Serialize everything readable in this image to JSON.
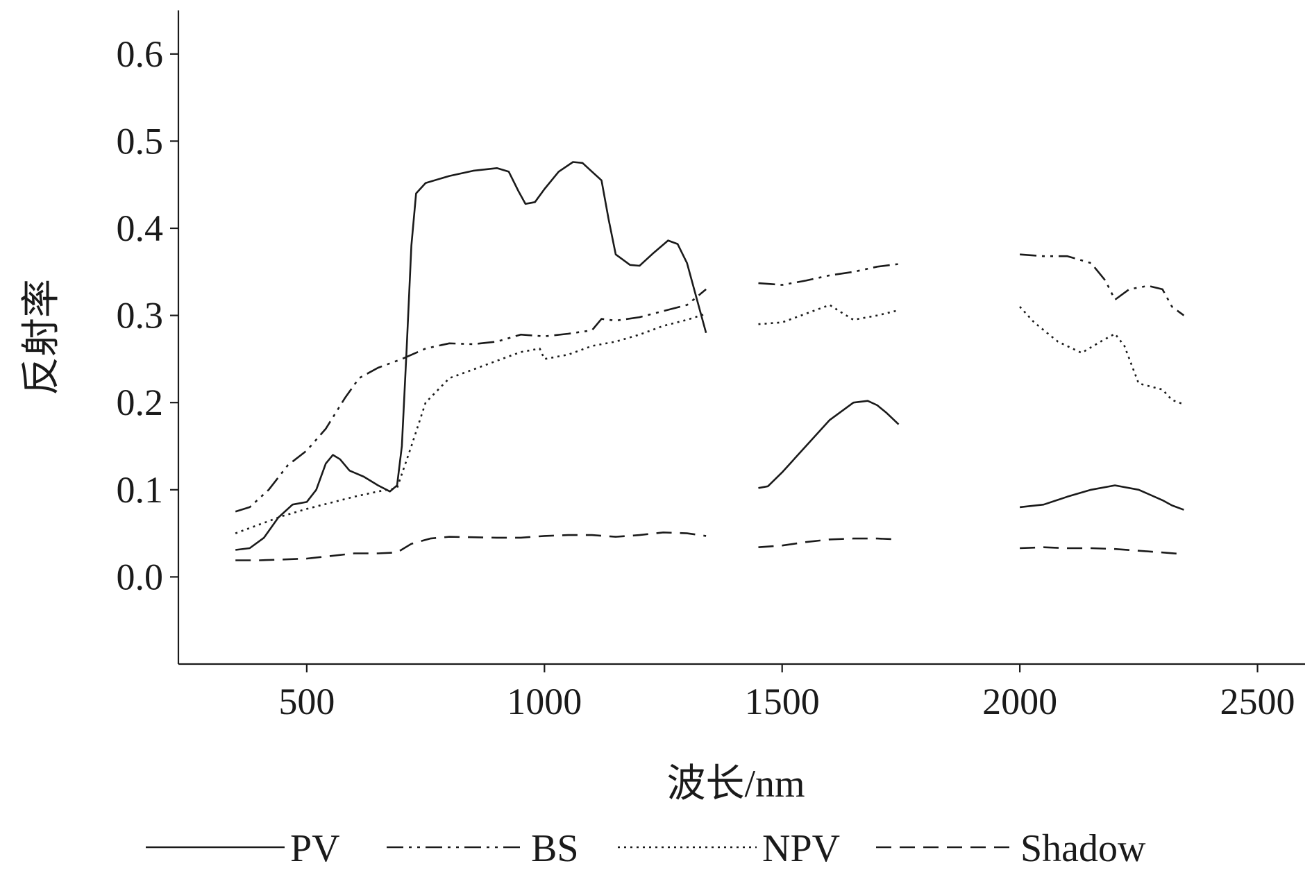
{
  "chart_data": {
    "type": "line",
    "title": "",
    "xlabel": "波长/nm",
    "ylabel": "反射率",
    "xlim": [
      230,
      2600
    ],
    "ylim": [
      -0.1,
      0.65
    ],
    "xticks": [
      500,
      1000,
      1500,
      2000,
      2500
    ],
    "xtick_labels": [
      "500",
      "1000",
      "1500",
      "2000",
      "2500"
    ],
    "yticks": [
      0.0,
      0.1,
      0.2,
      0.3,
      0.4,
      0.5,
      0.6
    ],
    "ytick_labels": [
      "0.0",
      "0.1",
      "0.2",
      "0.3",
      "0.4",
      "0.5",
      "0.6"
    ],
    "grid": false,
    "legend_position": "bottom",
    "series": [
      {
        "name": "PV",
        "style": "solid",
        "segments": [
          [
            [
              350,
              0.031
            ],
            [
              380,
              0.033
            ],
            [
              410,
              0.045
            ],
            [
              440,
              0.068
            ],
            [
              470,
              0.083
            ],
            [
              500,
              0.086
            ],
            [
              520,
              0.1
            ],
            [
              540,
              0.13
            ],
            [
              555,
              0.14
            ],
            [
              570,
              0.135
            ],
            [
              590,
              0.122
            ],
            [
              620,
              0.115
            ],
            [
              650,
              0.105
            ],
            [
              675,
              0.098
            ],
            [
              690,
              0.105
            ],
            [
              700,
              0.15
            ],
            [
              710,
              0.26
            ],
            [
              720,
              0.38
            ],
            [
              730,
              0.44
            ],
            [
              750,
              0.452
            ],
            [
              800,
              0.46
            ],
            [
              850,
              0.466
            ],
            [
              900,
              0.469
            ],
            [
              925,
              0.465
            ],
            [
              945,
              0.443
            ],
            [
              960,
              0.428
            ],
            [
              980,
              0.43
            ],
            [
              1000,
              0.445
            ],
            [
              1030,
              0.465
            ],
            [
              1060,
              0.476
            ],
            [
              1080,
              0.475
            ],
            [
              1100,
              0.465
            ],
            [
              1120,
              0.455
            ],
            [
              1135,
              0.41
            ],
            [
              1150,
              0.37
            ],
            [
              1180,
              0.358
            ],
            [
              1200,
              0.357
            ],
            [
              1230,
              0.372
            ],
            [
              1260,
              0.386
            ],
            [
              1280,
              0.382
            ],
            [
              1300,
              0.36
            ],
            [
              1320,
              0.32
            ],
            [
              1340,
              0.28
            ]
          ],
          [
            [
              1450,
              0.102
            ],
            [
              1470,
              0.104
            ],
            [
              1500,
              0.12
            ],
            [
              1550,
              0.15
            ],
            [
              1600,
              0.18
            ],
            [
              1650,
              0.2
            ],
            [
              1680,
              0.202
            ],
            [
              1700,
              0.197
            ],
            [
              1720,
              0.188
            ],
            [
              1745,
              0.175
            ]
          ],
          [
            [
              2000,
              0.08
            ],
            [
              2050,
              0.083
            ],
            [
              2100,
              0.092
            ],
            [
              2150,
              0.1
            ],
            [
              2200,
              0.105
            ],
            [
              2250,
              0.1
            ],
            [
              2300,
              0.088
            ],
            [
              2320,
              0.082
            ],
            [
              2345,
              0.077
            ]
          ]
        ]
      },
      {
        "name": "BS",
        "style": "dashdotdot",
        "segments": [
          [
            [
              350,
              0.075
            ],
            [
              380,
              0.08
            ],
            [
              420,
              0.1
            ],
            [
              460,
              0.128
            ],
            [
              500,
              0.145
            ],
            [
              540,
              0.17
            ],
            [
              580,
              0.205
            ],
            [
              610,
              0.228
            ],
            [
              650,
              0.24
            ],
            [
              700,
              0.25
            ],
            [
              750,
              0.262
            ],
            [
              800,
              0.268
            ],
            [
              850,
              0.267
            ],
            [
              900,
              0.27
            ],
            [
              950,
              0.278
            ],
            [
              1000,
              0.276
            ],
            [
              1050,
              0.279
            ],
            [
              1100,
              0.283
            ],
            [
              1120,
              0.296
            ],
            [
              1150,
              0.294
            ],
            [
              1200,
              0.298
            ],
            [
              1250,
              0.305
            ],
            [
              1300,
              0.312
            ],
            [
              1340,
              0.33
            ]
          ],
          [
            [
              1450,
              0.337
            ],
            [
              1500,
              0.335
            ],
            [
              1550,
              0.34
            ],
            [
              1600,
              0.346
            ],
            [
              1650,
              0.35
            ],
            [
              1700,
              0.356
            ],
            [
              1745,
              0.359
            ]
          ],
          [
            [
              2000,
              0.37
            ],
            [
              2050,
              0.368
            ],
            [
              2100,
              0.368
            ],
            [
              2150,
              0.36
            ],
            [
              2180,
              0.34
            ],
            [
              2200,
              0.318
            ],
            [
              2230,
              0.33
            ],
            [
              2270,
              0.334
            ],
            [
              2300,
              0.33
            ],
            [
              2320,
              0.31
            ],
            [
              2345,
              0.3
            ]
          ]
        ]
      },
      {
        "name": "NPV",
        "style": "dotted",
        "segments": [
          [
            [
              350,
              0.05
            ],
            [
              400,
              0.06
            ],
            [
              450,
              0.07
            ],
            [
              500,
              0.078
            ],
            [
              550,
              0.085
            ],
            [
              600,
              0.092
            ],
            [
              650,
              0.098
            ],
            [
              690,
              0.102
            ],
            [
              720,
              0.15
            ],
            [
              750,
              0.2
            ],
            [
              800,
              0.228
            ],
            [
              850,
              0.238
            ],
            [
              900,
              0.248
            ],
            [
              950,
              0.258
            ],
            [
              990,
              0.262
            ],
            [
              1000,
              0.25
            ],
            [
              1050,
              0.255
            ],
            [
              1100,
              0.265
            ],
            [
              1150,
              0.27
            ],
            [
              1200,
              0.278
            ],
            [
              1250,
              0.288
            ],
            [
              1300,
              0.295
            ],
            [
              1340,
              0.302
            ]
          ],
          [
            [
              1450,
              0.29
            ],
            [
              1500,
              0.292
            ],
            [
              1550,
              0.302
            ],
            [
              1600,
              0.312
            ],
            [
              1620,
              0.305
            ],
            [
              1650,
              0.295
            ],
            [
              1700,
              0.3
            ],
            [
              1745,
              0.306
            ]
          ],
          [
            [
              2000,
              0.31
            ],
            [
              2030,
              0.292
            ],
            [
              2080,
              0.27
            ],
            [
              2130,
              0.257
            ],
            [
              2170,
              0.27
            ],
            [
              2200,
              0.279
            ],
            [
              2220,
              0.265
            ],
            [
              2250,
              0.222
            ],
            [
              2300,
              0.215
            ],
            [
              2320,
              0.203
            ],
            [
              2345,
              0.198
            ]
          ]
        ]
      },
      {
        "name": "Shadow",
        "style": "dashed",
        "segments": [
          [
            [
              350,
              0.019
            ],
            [
              400,
              0.019
            ],
            [
              450,
              0.02
            ],
            [
              500,
              0.021
            ],
            [
              550,
              0.024
            ],
            [
              600,
              0.027
            ],
            [
              650,
              0.027
            ],
            [
              690,
              0.028
            ],
            [
              720,
              0.038
            ],
            [
              760,
              0.044
            ],
            [
              800,
              0.046
            ],
            [
              900,
              0.045
            ],
            [
              950,
              0.045
            ],
            [
              1000,
              0.047
            ],
            [
              1050,
              0.048
            ],
            [
              1100,
              0.048
            ],
            [
              1150,
              0.046
            ],
            [
              1200,
              0.048
            ],
            [
              1250,
              0.051
            ],
            [
              1300,
              0.05
            ],
            [
              1340,
              0.047
            ]
          ],
          [
            [
              1450,
              0.034
            ],
            [
              1500,
              0.036
            ],
            [
              1550,
              0.04
            ],
            [
              1600,
              0.043
            ],
            [
              1650,
              0.044
            ],
            [
              1700,
              0.044
            ],
            [
              1745,
              0.043
            ]
          ],
          [
            [
              2000,
              0.033
            ],
            [
              2050,
              0.034
            ],
            [
              2100,
              0.033
            ],
            [
              2150,
              0.033
            ],
            [
              2200,
              0.032
            ],
            [
              2250,
              0.03
            ],
            [
              2300,
              0.028
            ],
            [
              2345,
              0.026
            ]
          ]
        ]
      }
    ]
  }
}
